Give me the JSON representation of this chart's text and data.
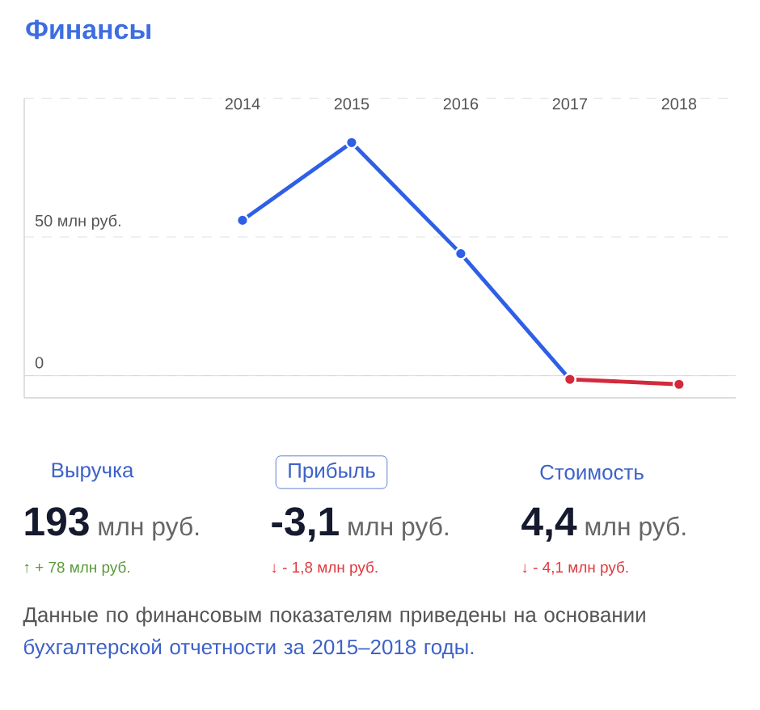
{
  "chart_data": [
    {
      "type": "line",
      "title": "Финансы",
      "categories": [
        "2014",
        "2015",
        "2016",
        "2017",
        "2018"
      ],
      "series": [
        {
          "color": "#2f5fe6",
          "values": [
            56,
            84,
            44,
            -1.3,
            null
          ]
        },
        {
          "color": "#d22a3c",
          "values": [
            null,
            null,
            null,
            -1.3,
            -3.1
          ]
        }
      ],
      "ylim": [
        -8,
        100
      ],
      "yticks": [
        0,
        {
          "value": 50,
          "label": "50 млн руб."
        },
        {
          "value": 100,
          "label": null
        }
      ],
      "grid": "y",
      "marker": "circle",
      "line_style": "solid"
    },
    {
      "type": "other",
      "annotations": [
        "Выручка",
        "Прибыль",
        "Стоимость",
        "193",
        "млн руб.",
        "-3,1",
        "млн руб.",
        "4,4",
        "млн руб.",
        "↑ + 78 млн руб.",
        "↓ - 1,8 млн руб.",
        "↓ - 4,1 млн руб.",
        "Данные по финансовым показателям приведены на основании",
        "бухгалтерской отчетности за 2015–2018 годы."
      ]
    }
  ]
}
